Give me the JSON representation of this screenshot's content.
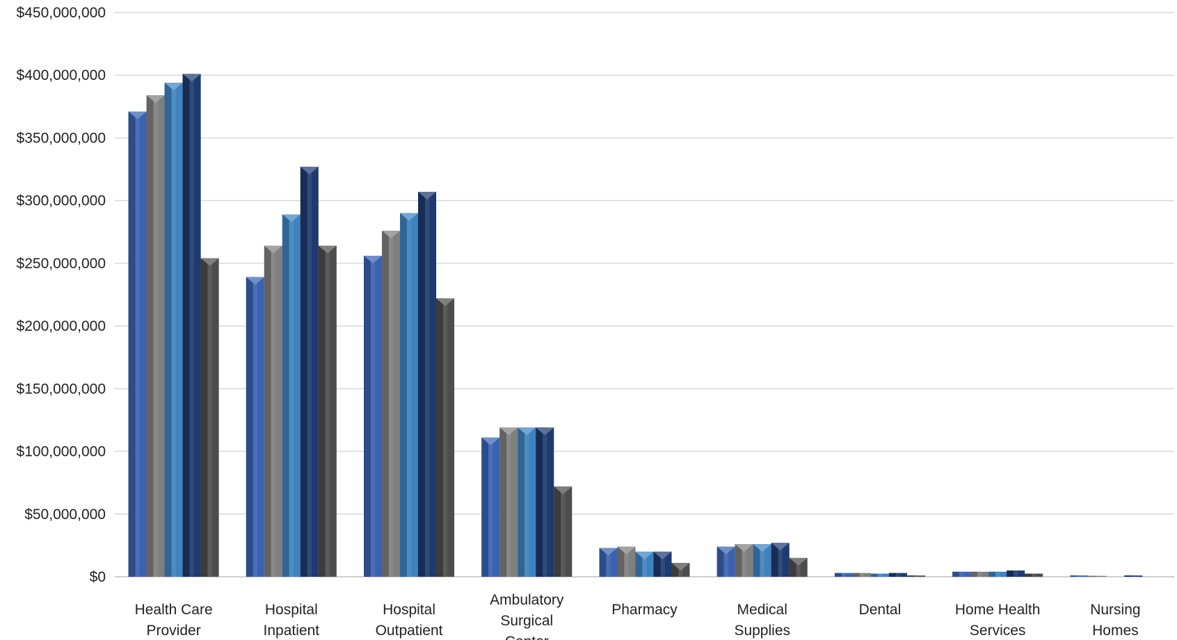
{
  "chart_data": {
    "type": "bar",
    "title": "",
    "xlabel": "",
    "ylabel": "",
    "ylim": [
      0,
      450000000
    ],
    "y_ticks": [
      {
        "value": 0,
        "label": "$0"
      },
      {
        "value": 50000000,
        "label": "$50,000,000"
      },
      {
        "value": 100000000,
        "label": "$100,000,000"
      },
      {
        "value": 150000000,
        "label": "$150,000,000"
      },
      {
        "value": 200000000,
        "label": "$200,000,000"
      },
      {
        "value": 250000000,
        "label": "$250,000,000"
      },
      {
        "value": 300000000,
        "label": "$300,000,000"
      },
      {
        "value": 350000000,
        "label": "$350,000,000"
      },
      {
        "value": 400000000,
        "label": "$400,000,000"
      },
      {
        "value": 450000000,
        "label": "$450,000,000"
      }
    ],
    "grid": true,
    "legend": "none",
    "categories": [
      [
        "Health Care",
        "Provider"
      ],
      [
        "Hospital",
        "Inpatient"
      ],
      [
        "Hospital",
        "Outpatient"
      ],
      [
        "Ambulatory",
        "Surgical",
        "Center"
      ],
      [
        "Pharmacy"
      ],
      [
        "Medical",
        "Supplies"
      ],
      [
        "Dental"
      ],
      [
        "Home Health",
        "Services"
      ],
      [
        "Nursing",
        "Homes"
      ]
    ],
    "series": [
      {
        "color": "#3a62b0",
        "values": [
          371000000,
          239000000,
          256000000,
          111000000,
          23000000,
          24000000,
          3000000,
          4000000,
          1000000
        ]
      },
      {
        "color": "#7f7f7f",
        "values": [
          384000000,
          264000000,
          276000000,
          119000000,
          24000000,
          26000000,
          3000000,
          4000000,
          700000
        ]
      },
      {
        "color": "#3f82bf",
        "values": [
          394000000,
          289000000,
          290000000,
          119000000,
          20000000,
          26000000,
          2500000,
          4000000,
          0
        ]
      },
      {
        "color": "#1f3a6e",
        "values": [
          401000000,
          327000000,
          307000000,
          119000000,
          20000000,
          27000000,
          3000000,
          5000000,
          1000000
        ]
      },
      {
        "color": "#4d4d4d",
        "values": [
          254000000,
          264000000,
          222000000,
          72000000,
          11000000,
          15000000,
          1000000,
          2500000,
          0
        ]
      }
    ]
  }
}
